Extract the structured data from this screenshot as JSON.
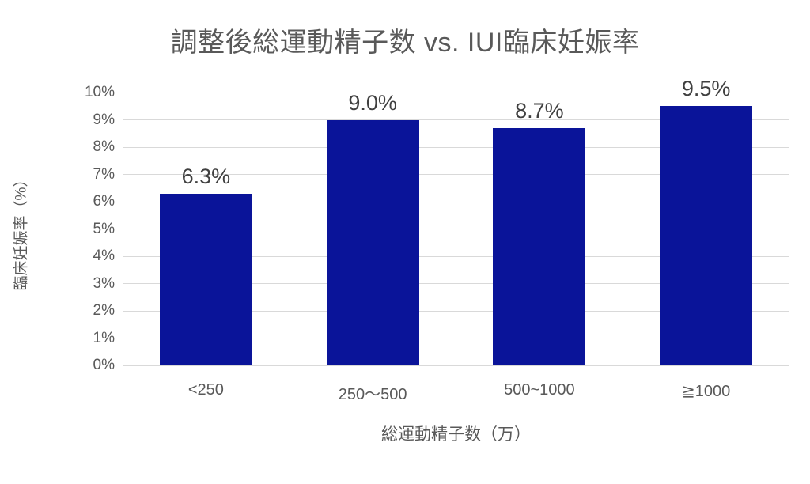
{
  "chart_data": {
    "type": "bar",
    "title": "調整後総運動精子数 vs. IUI臨床妊娠率",
    "xlabel": "総運動精子数（万）",
    "ylabel": "臨床妊娠率（%）",
    "categories": [
      "<250",
      "250〜500",
      "500~1000",
      "≧1000"
    ],
    "values": [
      6.3,
      9.0,
      8.7,
      9.5
    ],
    "value_labels": [
      "6.3%",
      "9.0%",
      "8.7%",
      "9.5%"
    ],
    "ylim": [
      0,
      10
    ],
    "ytick_step": 1,
    "ytick_labels": [
      "0%",
      "1%",
      "2%",
      "3%",
      "4%",
      "5%",
      "6%",
      "7%",
      "8%",
      "9%",
      "10%"
    ],
    "grid": true,
    "legend_position": "none",
    "colors": {
      "bar": "#0a1499",
      "title_text": "#595959",
      "value_label_text": "#404040",
      "axis_text": "#595959",
      "gridline": "#d9d9d9",
      "background": "#ffffff"
    }
  }
}
